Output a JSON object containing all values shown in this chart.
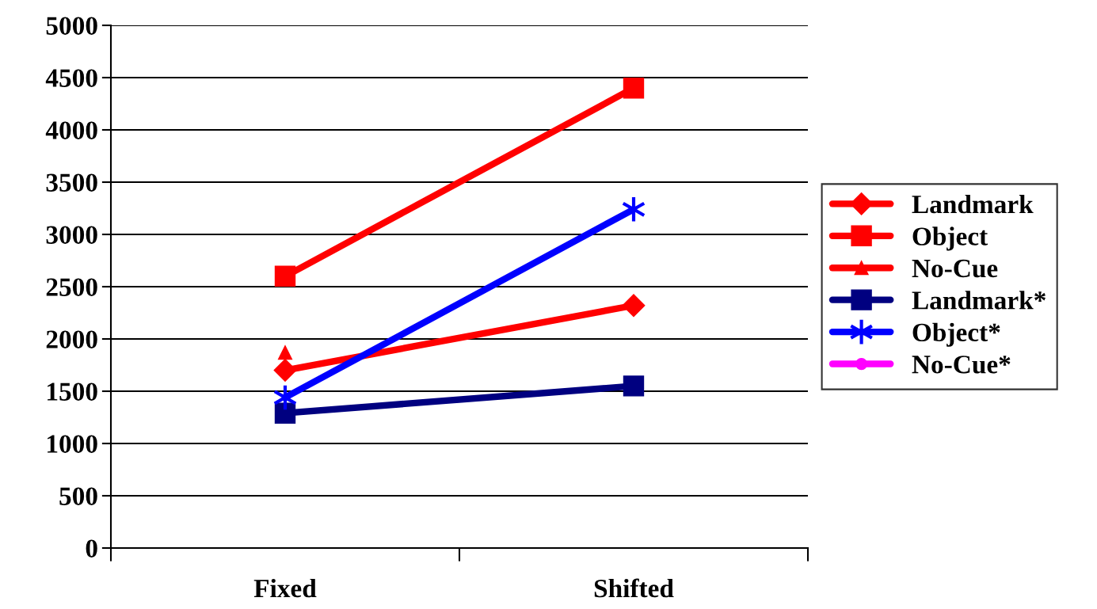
{
  "chart_data": {
    "type": "line",
    "categories": [
      "Fixed",
      "Shifted"
    ],
    "series": [
      {
        "name": "Landmark",
        "color": "#ff0000",
        "marker": "diamond",
        "values": [
          1700,
          2320
        ]
      },
      {
        "name": "Object",
        "color": "#ff0000",
        "marker": "square",
        "values": [
          2600,
          4400
        ]
      },
      {
        "name": "No-Cue",
        "color": "#ff0000",
        "marker": "triangle",
        "values": [
          1870,
          null
        ]
      },
      {
        "name": "Landmark*",
        "color": "#000080",
        "marker": "square",
        "values": [
          1290,
          1550
        ]
      },
      {
        "name": "Object*",
        "color": "#0000ff",
        "marker": "cross",
        "values": [
          1440,
          3240
        ]
      },
      {
        "name": "No-Cue*",
        "color": "#ff00ff",
        "marker": "circle",
        "values": [
          null,
          null
        ]
      }
    ],
    "ylim": [
      0,
      5000
    ],
    "yticks": [
      0,
      500,
      1000,
      1500,
      2000,
      2500,
      3000,
      3500,
      4000,
      4500,
      5000
    ],
    "grid": "y",
    "legend": "right"
  }
}
